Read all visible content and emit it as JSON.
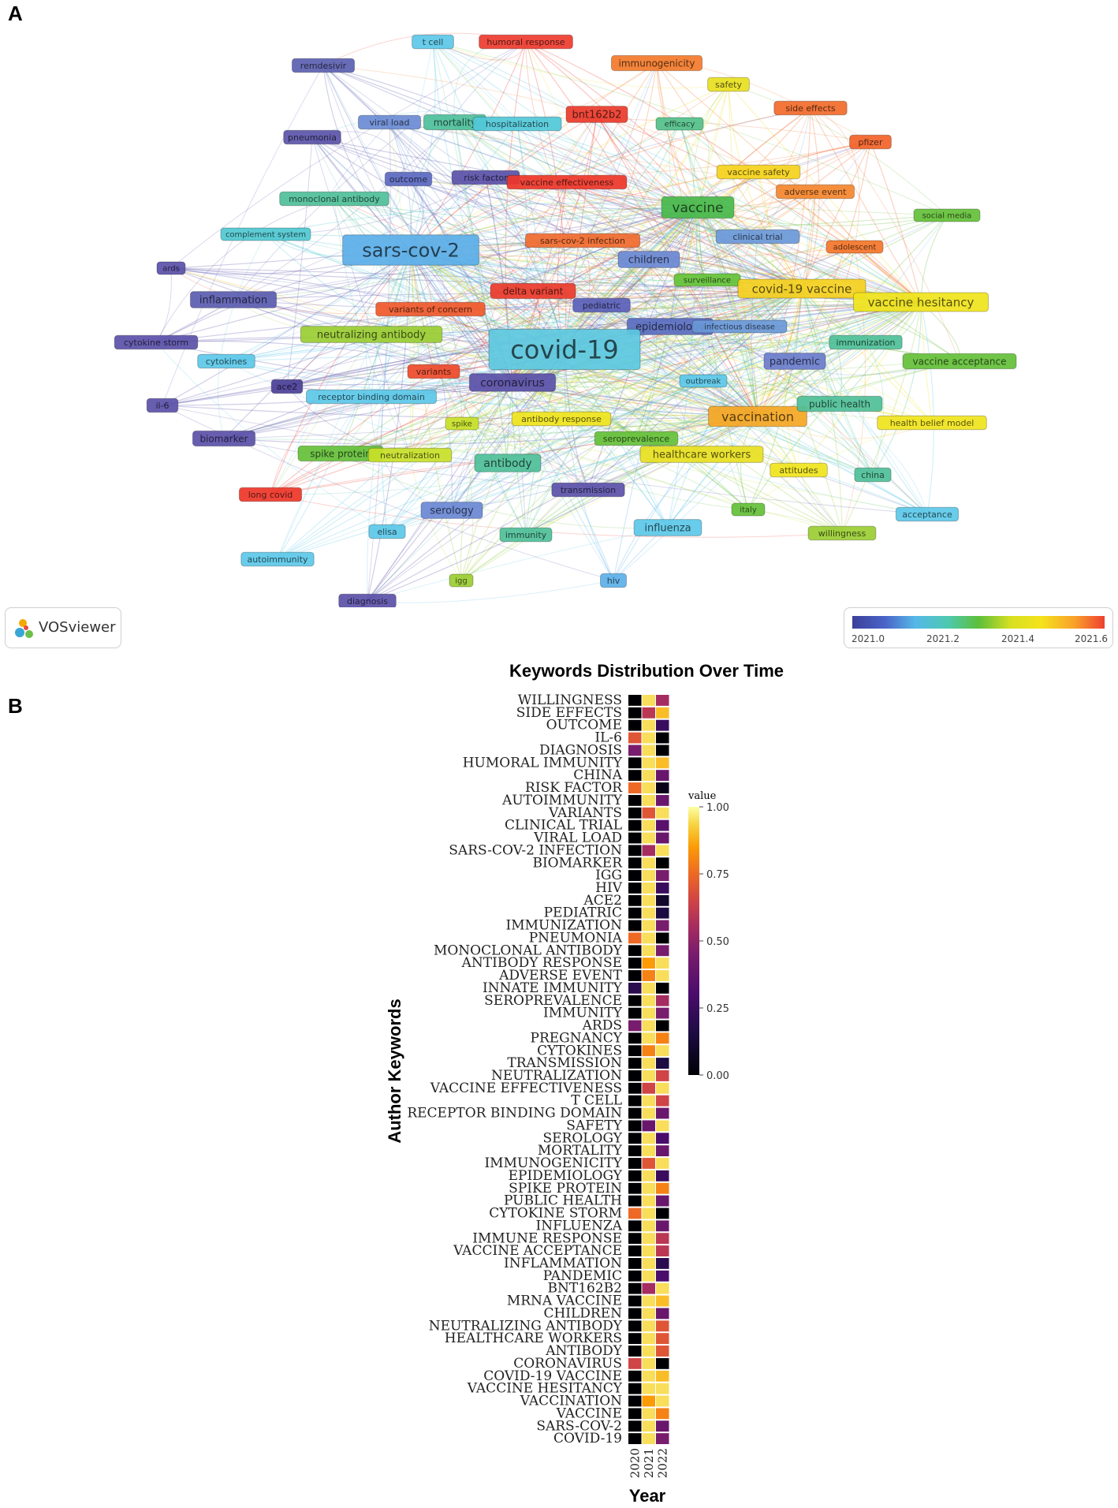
{
  "panels": {
    "a": "A",
    "b": "B"
  },
  "network": {
    "logo_text": "VOSviewer",
    "legend": {
      "ticks": [
        "2021.0",
        "2021.2",
        "2021.4",
        "2021.6"
      ],
      "colors": [
        "#3b3f9a",
        "#4a64c8",
        "#55b8e8",
        "#4ec9b0",
        "#5cbf3a",
        "#d8e020",
        "#f5e21b",
        "#f9a12a",
        "#ee4030"
      ]
    },
    "nodes": [
      {
        "label": "t cell",
        "c": "#5bc8e8"
      },
      {
        "label": "humoral response",
        "c": "#ee3b2e"
      },
      {
        "label": "remdesivir",
        "c": "#5b5fb0"
      },
      {
        "label": "immunogenicity",
        "c": "#f37a2a"
      },
      {
        "label": "safety",
        "c": "#e8e020"
      },
      {
        "label": "viral load",
        "c": "#6a8bd4"
      },
      {
        "label": "mortality",
        "c": "#4dbf9a"
      },
      {
        "label": "hospitalization",
        "c": "#50c8d8"
      },
      {
        "label": "bnt162b2",
        "c": "#ec3a2a"
      },
      {
        "label": "efficacy",
        "c": "#52c08a"
      },
      {
        "label": "side effects",
        "c": "#f26a2a"
      },
      {
        "label": "pneumonia",
        "c": "#5a54a8"
      },
      {
        "label": "pfizer",
        "c": "#f26228"
      },
      {
        "label": "outcome",
        "c": "#5a68c0"
      },
      {
        "label": "risk factor",
        "c": "#5a50a8"
      },
      {
        "label": "vaccine effectiveness",
        "c": "#ee3528"
      },
      {
        "label": "vaccine safety",
        "c": "#f5d21a"
      },
      {
        "label": "adverse event",
        "c": "#f4852c"
      },
      {
        "label": "monoclonal antibody",
        "c": "#4ebf98"
      },
      {
        "label": "vaccine",
        "c": "#46b84a"
      },
      {
        "label": "social media",
        "c": "#64c038"
      },
      {
        "label": "complement system",
        "c": "#4fc8d0"
      },
      {
        "label": "sars-cov-2",
        "c": "#5aaee8"
      },
      {
        "label": "sars-cov-2 infection",
        "c": "#f06a2e"
      },
      {
        "label": "clinical trial",
        "c": "#6a98d8"
      },
      {
        "label": "children",
        "c": "#6a88d4"
      },
      {
        "label": "adolescent",
        "c": "#f4752a"
      },
      {
        "label": "ards",
        "c": "#5a50a8"
      },
      {
        "label": "surveillance",
        "c": "#64c238"
      },
      {
        "label": "covid-19 vaccine",
        "c": "#f5d020"
      },
      {
        "label": "delta variant",
        "c": "#ec3a2a"
      },
      {
        "label": "vaccine hesitancy",
        "c": "#f0e41c"
      },
      {
        "label": "inflammation",
        "c": "#5a5cb0"
      },
      {
        "label": "variants of concern",
        "c": "#f0582a"
      },
      {
        "label": "pediatric",
        "c": "#5a60b8"
      },
      {
        "label": "neutralizing antibody",
        "c": "#9acd32"
      },
      {
        "label": "epidemiology",
        "c": "#5a6cc0"
      },
      {
        "label": "infectious disease",
        "c": "#6a98d8"
      },
      {
        "label": "covid-19",
        "c": "#5cc8e0"
      },
      {
        "label": "immunization",
        "c": "#4ebf98"
      },
      {
        "label": "cytokine storm",
        "c": "#5a50a8"
      },
      {
        "label": "cytokines",
        "c": "#5bc8e8"
      },
      {
        "label": "pandemic",
        "c": "#6a7ccc"
      },
      {
        "label": "vaccine acceptance",
        "c": "#64c038"
      },
      {
        "label": "variants",
        "c": "#ee4a2a"
      },
      {
        "label": "ace2",
        "c": "#4a3f98"
      },
      {
        "label": "coronavirus",
        "c": "#5a50a8"
      },
      {
        "label": "outbreak",
        "c": "#5bc8e8"
      },
      {
        "label": "receptor binding domain",
        "c": "#5bc8e8"
      },
      {
        "label": "il-6",
        "c": "#5a50a8"
      },
      {
        "label": "vaccination",
        "c": "#f5a623"
      },
      {
        "label": "public health",
        "c": "#4ebf98"
      },
      {
        "label": "health belief model",
        "c": "#f0e41c"
      },
      {
        "label": "spike",
        "c": "#c8e028"
      },
      {
        "label": "antibody response",
        "c": "#f0e41c"
      },
      {
        "label": "biomarker",
        "c": "#5a50a8"
      },
      {
        "label": "seroprevalence",
        "c": "#64c038"
      },
      {
        "label": "healthcare workers",
        "c": "#e8e020"
      },
      {
        "label": "spike protein",
        "c": "#64c038"
      },
      {
        "label": "neutralization",
        "c": "#c8e028"
      },
      {
        "label": "antibody",
        "c": "#4ebf98"
      },
      {
        "label": "attitudes",
        "c": "#f0e41c"
      },
      {
        "label": "china",
        "c": "#4ebf98"
      },
      {
        "label": "long covid",
        "c": "#ee3528"
      },
      {
        "label": "transmission",
        "c": "#5a50a8"
      },
      {
        "label": "italy",
        "c": "#64c038"
      },
      {
        "label": "serology",
        "c": "#6a88d4"
      },
      {
        "label": "acceptance",
        "c": "#5bc8e8"
      },
      {
        "label": "elisa",
        "c": "#5bc8e8"
      },
      {
        "label": "immunity",
        "c": "#4ebf98"
      },
      {
        "label": "influenza",
        "c": "#5bc8e8"
      },
      {
        "label": "willingness",
        "c": "#9acd32"
      },
      {
        "label": "autoimmunity",
        "c": "#5bc8e8"
      },
      {
        "label": "igg",
        "c": "#9acd32"
      },
      {
        "label": "hiv",
        "c": "#5bb0e8"
      },
      {
        "label": "diagnosis",
        "c": "#5a50a8"
      }
    ]
  },
  "chart_data": {
    "type": "heatmap",
    "title": "Keywords Distribution Over Time",
    "xlabel": "Year",
    "ylabel": "Author Keywords",
    "x": [
      "2020",
      "2021",
      "2022"
    ],
    "colorbar": {
      "title": "value",
      "range": [
        0,
        1
      ],
      "ticks": [
        "1.00",
        "0.75",
        "0.50",
        "0.25",
        "0.00"
      ]
    },
    "rows": [
      {
        "keyword": "WILLINGNESS",
        "values": [
          0.0,
          0.95,
          0.55
        ]
      },
      {
        "keyword": "SIDE EFFECTS",
        "values": [
          0.0,
          0.6,
          0.9
        ]
      },
      {
        "keyword": "OUTCOME",
        "values": [
          0.0,
          0.95,
          0.25
        ]
      },
      {
        "keyword": "IL-6",
        "values": [
          0.7,
          0.95,
          0.0
        ]
      },
      {
        "keyword": "DIAGNOSIS",
        "values": [
          0.45,
          0.95,
          0.0
        ]
      },
      {
        "keyword": "HUMORAL IMMUNITY",
        "values": [
          0.0,
          0.95,
          0.9
        ]
      },
      {
        "keyword": "CHINA",
        "values": [
          0.0,
          0.95,
          0.4
        ]
      },
      {
        "keyword": "RISK FACTOR",
        "values": [
          0.75,
          0.95,
          0.05
        ]
      },
      {
        "keyword": "AUTOIMMUNITY",
        "values": [
          0.0,
          0.95,
          0.4
        ]
      },
      {
        "keyword": "VARIANTS",
        "values": [
          0.0,
          0.7,
          0.95
        ]
      },
      {
        "keyword": "CLINICAL TRIAL",
        "values": [
          0.0,
          0.95,
          0.35
        ]
      },
      {
        "keyword": "VIRAL LOAD",
        "values": [
          0.0,
          0.95,
          0.4
        ]
      },
      {
        "keyword": "SARS-COV-2 INFECTION",
        "values": [
          0.0,
          0.55,
          0.95
        ]
      },
      {
        "keyword": "BIOMARKER",
        "values": [
          0.0,
          0.95,
          0.0
        ]
      },
      {
        "keyword": "IGG",
        "values": [
          0.0,
          0.95,
          0.45
        ]
      },
      {
        "keyword": "HIV",
        "values": [
          0.0,
          0.95,
          0.25
        ]
      },
      {
        "keyword": "ACE2",
        "values": [
          0.0,
          0.95,
          0.1
        ]
      },
      {
        "keyword": "PEDIATRIC",
        "values": [
          0.0,
          0.95,
          0.15
        ]
      },
      {
        "keyword": "IMMUNIZATION",
        "values": [
          0.0,
          0.95,
          0.45
        ]
      },
      {
        "keyword": "PNEUMONIA",
        "values": [
          0.75,
          0.95,
          0.0
        ]
      },
      {
        "keyword": "MONOCLONAL ANTIBODY",
        "values": [
          0.0,
          0.95,
          0.45
        ]
      },
      {
        "keyword": "ANTIBODY RESPONSE",
        "values": [
          0.0,
          0.85,
          0.95
        ]
      },
      {
        "keyword": "ADVERSE EVENT",
        "values": [
          0.0,
          0.8,
          0.95
        ]
      },
      {
        "keyword": "INNATE IMMUNITY",
        "values": [
          0.2,
          0.95,
          0.0
        ]
      },
      {
        "keyword": "SEROPREVALENCE",
        "values": [
          0.0,
          0.95,
          0.55
        ]
      },
      {
        "keyword": "IMMUNITY",
        "values": [
          0.0,
          0.95,
          0.45
        ]
      },
      {
        "keyword": "ARDS",
        "values": [
          0.45,
          0.95,
          0.0
        ]
      },
      {
        "keyword": "PREGNANCY",
        "values": [
          0.0,
          0.95,
          0.8
        ]
      },
      {
        "keyword": "CYTOKINES",
        "values": [
          0.0,
          0.8,
          0.95
        ]
      },
      {
        "keyword": "TRANSMISSION",
        "values": [
          0.0,
          0.95,
          0.15
        ]
      },
      {
        "keyword": "NEUTRALIZATION",
        "values": [
          0.0,
          0.95,
          0.65
        ]
      },
      {
        "keyword": "VACCINE EFFECTIVENESS",
        "values": [
          0.0,
          0.65,
          0.95
        ]
      },
      {
        "keyword": "T CELL",
        "values": [
          0.0,
          0.95,
          0.65
        ]
      },
      {
        "keyword": "RECEPTOR BINDING DOMAIN",
        "values": [
          0.0,
          0.95,
          0.4
        ]
      },
      {
        "keyword": "SAFETY",
        "values": [
          0.0,
          0.4,
          0.95
        ]
      },
      {
        "keyword": "SEROLOGY",
        "values": [
          0.0,
          0.95,
          0.3
        ]
      },
      {
        "keyword": "MORTALITY",
        "values": [
          0.0,
          0.95,
          0.4
        ]
      },
      {
        "keyword": "IMMUNOGENICITY",
        "values": [
          0.0,
          0.7,
          0.95
        ]
      },
      {
        "keyword": "EPIDEMIOLOGY",
        "values": [
          0.0,
          0.95,
          0.25
        ]
      },
      {
        "keyword": "SPIKE PROTEIN",
        "values": [
          0.0,
          0.95,
          0.8
        ]
      },
      {
        "keyword": "PUBLIC HEALTH",
        "values": [
          0.0,
          0.95,
          0.4
        ]
      },
      {
        "keyword": "CYTOKINE STORM",
        "values": [
          0.75,
          0.95,
          0.0
        ]
      },
      {
        "keyword": "INFLUENZA",
        "values": [
          0.0,
          0.95,
          0.4
        ]
      },
      {
        "keyword": "IMMUNE RESPONSE",
        "values": [
          0.0,
          0.95,
          0.6
        ]
      },
      {
        "keyword": "VACCINE ACCEPTANCE",
        "values": [
          0.0,
          0.95,
          0.6
        ]
      },
      {
        "keyword": "INFLAMMATION",
        "values": [
          0.0,
          0.95,
          0.2
        ]
      },
      {
        "keyword": "PANDEMIC",
        "values": [
          0.0,
          0.95,
          0.3
        ]
      },
      {
        "keyword": "BNT162B2",
        "values": [
          0.0,
          0.55,
          0.95
        ]
      },
      {
        "keyword": "MRNA VACCINE",
        "values": [
          0.0,
          0.95,
          0.9
        ]
      },
      {
        "keyword": "CHILDREN",
        "values": [
          0.0,
          0.95,
          0.4
        ]
      },
      {
        "keyword": "NEUTRALIZING ANTIBODY",
        "values": [
          0.0,
          0.95,
          0.7
        ]
      },
      {
        "keyword": "HEALTHCARE WORKERS",
        "values": [
          0.0,
          0.95,
          0.7
        ]
      },
      {
        "keyword": "ANTIBODY",
        "values": [
          0.0,
          0.95,
          0.7
        ]
      },
      {
        "keyword": "CORONAVIRUS",
        "values": [
          0.65,
          0.95,
          0.0
        ]
      },
      {
        "keyword": "COVID-19 VACCINE",
        "values": [
          0.0,
          0.95,
          0.9
        ]
      },
      {
        "keyword": "VACCINE HESITANCY",
        "values": [
          0.0,
          0.95,
          0.95
        ]
      },
      {
        "keyword": "VACCINATION",
        "values": [
          0.0,
          0.85,
          0.95
        ]
      },
      {
        "keyword": "VACCINE",
        "values": [
          0.0,
          0.95,
          0.8
        ]
      },
      {
        "keyword": "SARS-COV-2",
        "values": [
          0.0,
          0.95,
          0.4
        ]
      },
      {
        "keyword": "COVID-19",
        "values": [
          0.0,
          0.95,
          0.45
        ]
      }
    ]
  }
}
